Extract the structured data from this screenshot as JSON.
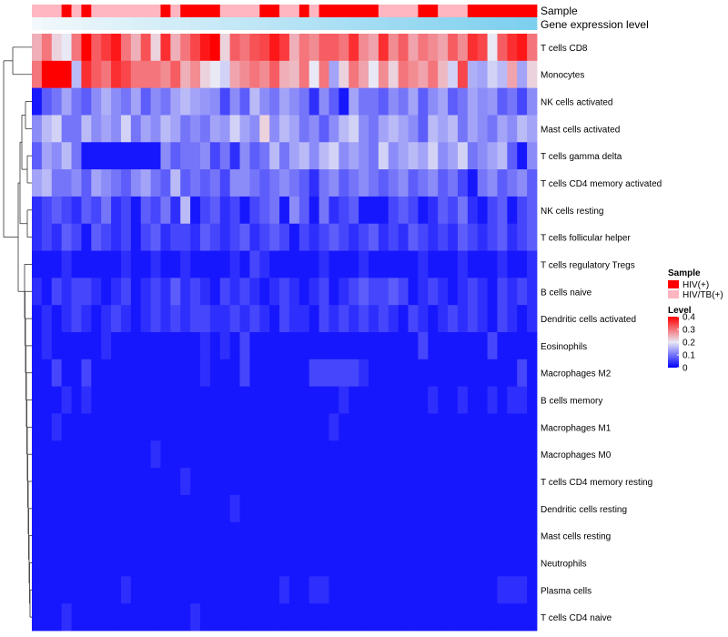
{
  "chart_data": {
    "type": "heatmap",
    "title": "",
    "annotation_tracks": [
      {
        "name": "Sample",
        "values": [
          "HIV/TB(+)",
          "HIV/TB(+)",
          "HIV/TB(+)",
          "HIV(+)",
          "HIV/TB(+)",
          "HIV(+)",
          "HIV/TB(+)",
          "HIV/TB(+)",
          "HIV/TB(+)",
          "HIV/TB(+)",
          "HIV/TB(+)",
          "HIV/TB(+)",
          "HIV/TB(+)",
          "HIV(+)",
          "HIV/TB(+)",
          "HIV(+)",
          "HIV(+)",
          "HIV(+)",
          "HIV(+)",
          "HIV/TB(+)",
          "HIV/TB(+)",
          "HIV/TB(+)",
          "HIV/TB(+)",
          "HIV(+)",
          "HIV(+)",
          "HIV/TB(+)",
          "HIV/TB(+)",
          "HIV(+)",
          "HIV/TB(+)",
          "HIV(+)",
          "HIV(+)",
          "HIV(+)",
          "HIV(+)",
          "HIV(+)",
          "HIV(+)",
          "HIV/TB(+)",
          "HIV/TB(+)",
          "HIV/TB(+)",
          "HIV/TB(+)",
          "HIV(+)",
          "HIV(+)",
          "HIV/TB(+)",
          "HIV/TB(+)",
          "HIV/TB(+)",
          "HIV(+)",
          "HIV(+)",
          "HIV(+)",
          "HIV(+)",
          "HIV(+)",
          "HIV(+)",
          "HIV(+)"
        ]
      },
      {
        "name": "Gene expression level",
        "values": [
          0.0,
          0.02,
          0.04,
          0.06,
          0.08,
          0.1,
          0.12,
          0.14,
          0.16,
          0.18,
          0.2,
          0.22,
          0.24,
          0.26,
          0.28,
          0.3,
          0.32,
          0.34,
          0.36,
          0.38,
          0.4,
          0.42,
          0.44,
          0.46,
          0.48,
          0.5,
          0.52,
          0.54,
          0.56,
          0.58,
          0.6,
          0.62,
          0.64,
          0.66,
          0.68,
          0.7,
          0.72,
          0.74,
          0.76,
          0.78,
          0.8,
          0.82,
          0.84,
          0.86,
          0.88,
          0.9,
          0.92,
          0.94,
          0.96,
          0.98,
          1.0
        ]
      }
    ],
    "rows": [
      "T cells CD8",
      "Monocytes",
      "NK cells activated",
      "Mast cells activated",
      "T cells gamma delta",
      "T cells CD4 memory activated",
      "NK cells resting",
      "T cells follicular helper",
      "T cells regulatory  Tregs",
      "B cells naive",
      "Dendritic cells activated",
      "Eosinophils",
      "Macrophages M2",
      "B cells memory",
      "Macrophages M1",
      "Macrophages M0",
      "T cells CD4 memory resting",
      "Dendritic cells resting",
      "Mast cells resting",
      "Neutrophils",
      "Plasma cells",
      "T cells CD4 naive"
    ],
    "n_columns": 51,
    "values": [
      [
        0.25,
        0.3,
        0.22,
        0.2,
        0.3,
        0.4,
        0.32,
        0.35,
        0.38,
        0.3,
        0.25,
        0.33,
        0.22,
        0.36,
        0.25,
        0.3,
        0.34,
        0.38,
        0.4,
        0.22,
        0.32,
        0.3,
        0.33,
        0.34,
        0.38,
        0.35,
        0.25,
        0.3,
        0.28,
        0.32,
        0.32,
        0.3,
        0.36,
        0.28,
        0.26,
        0.36,
        0.28,
        0.32,
        0.26,
        0.3,
        0.28,
        0.26,
        0.32,
        0.28,
        0.36,
        0.34,
        0.2,
        0.32,
        0.36,
        0.38,
        0.3
      ],
      [
        0.3,
        0.4,
        0.4,
        0.4,
        0.16,
        0.36,
        0.32,
        0.3,
        0.36,
        0.34,
        0.3,
        0.3,
        0.3,
        0.28,
        0.32,
        0.25,
        0.28,
        0.22,
        0.2,
        0.18,
        0.26,
        0.28,
        0.3,
        0.28,
        0.32,
        0.25,
        0.24,
        0.3,
        0.2,
        0.3,
        0.14,
        0.22,
        0.3,
        0.26,
        0.2,
        0.28,
        0.22,
        0.3,
        0.28,
        0.26,
        0.3,
        0.24,
        0.18,
        0.34,
        0.15,
        0.14,
        0.18,
        0.16,
        0.26,
        0.14,
        0.22
      ],
      [
        0.02,
        0.08,
        0.1,
        0.14,
        0.1,
        0.08,
        0.12,
        0.15,
        0.12,
        0.1,
        0.14,
        0.08,
        0.12,
        0.1,
        0.14,
        0.16,
        0.14,
        0.13,
        0.12,
        0.06,
        0.12,
        0.08,
        0.16,
        0.12,
        0.1,
        0.14,
        0.12,
        0.1,
        0.04,
        0.12,
        0.08,
        0.02,
        0.14,
        0.1,
        0.1,
        0.08,
        0.12,
        0.1,
        0.14,
        0.08,
        0.12,
        0.14,
        0.08,
        0.1,
        0.14,
        0.12,
        0.13,
        0.08,
        0.1,
        0.06,
        0.12
      ],
      [
        0.12,
        0.16,
        0.18,
        0.1,
        0.1,
        0.16,
        0.12,
        0.14,
        0.12,
        0.18,
        0.1,
        0.14,
        0.12,
        0.16,
        0.14,
        0.1,
        0.12,
        0.1,
        0.14,
        0.13,
        0.18,
        0.14,
        0.12,
        0.22,
        0.12,
        0.16,
        0.14,
        0.1,
        0.12,
        0.08,
        0.12,
        0.16,
        0.18,
        0.12,
        0.1,
        0.14,
        0.16,
        0.14,
        0.12,
        0.08,
        0.16,
        0.14,
        0.16,
        0.1,
        0.14,
        0.12,
        0.1,
        0.14,
        0.12,
        0.16,
        0.14
      ],
      [
        0.08,
        0.14,
        0.12,
        0.16,
        0.1,
        0.02,
        0.02,
        0.02,
        0.02,
        0.02,
        0.02,
        0.02,
        0.02,
        0.12,
        0.08,
        0.1,
        0.1,
        0.12,
        0.06,
        0.1,
        0.04,
        0.12,
        0.08,
        0.1,
        0.16,
        0.1,
        0.14,
        0.16,
        0.12,
        0.16,
        0.18,
        0.12,
        0.14,
        0.12,
        0.1,
        0.18,
        0.12,
        0.14,
        0.16,
        0.14,
        0.18,
        0.12,
        0.14,
        0.18,
        0.1,
        0.12,
        0.14,
        0.16,
        0.08,
        0.02,
        0.12
      ],
      [
        0.14,
        0.16,
        0.1,
        0.1,
        0.12,
        0.08,
        0.14,
        0.12,
        0.1,
        0.08,
        0.12,
        0.14,
        0.1,
        0.08,
        0.16,
        0.08,
        0.1,
        0.08,
        0.1,
        0.06,
        0.12,
        0.12,
        0.1,
        0.08,
        0.1,
        0.12,
        0.1,
        0.08,
        0.04,
        0.1,
        0.12,
        0.08,
        0.1,
        0.12,
        0.1,
        0.08,
        0.1,
        0.12,
        0.08,
        0.1,
        0.12,
        0.08,
        0.1,
        0.06,
        0.02,
        0.1,
        0.12,
        0.08,
        0.1,
        0.12,
        0.08
      ],
      [
        0.04,
        0.06,
        0.08,
        0.06,
        0.04,
        0.08,
        0.06,
        0.1,
        0.04,
        0.06,
        0.02,
        0.08,
        0.06,
        0.1,
        0.04,
        0.16,
        0.02,
        0.06,
        0.08,
        0.04,
        0.06,
        0.02,
        0.06,
        0.08,
        0.1,
        0.02,
        0.12,
        0.08,
        0.02,
        0.1,
        0.04,
        0.06,
        0.08,
        0.02,
        0.02,
        0.02,
        0.06,
        0.08,
        0.06,
        0.02,
        0.04,
        0.08,
        0.06,
        0.1,
        0.04,
        0.02,
        0.06,
        0.08,
        0.02,
        0.06,
        0.08
      ],
      [
        0.04,
        0.06,
        0.04,
        0.08,
        0.06,
        0.02,
        0.08,
        0.06,
        0.04,
        0.06,
        0.02,
        0.06,
        0.08,
        0.04,
        0.06,
        0.06,
        0.04,
        0.08,
        0.06,
        0.04,
        0.06,
        0.08,
        0.04,
        0.06,
        0.08,
        0.06,
        0.02,
        0.06,
        0.04,
        0.06,
        0.08,
        0.06,
        0.04,
        0.06,
        0.08,
        0.04,
        0.06,
        0.04,
        0.08,
        0.06,
        0.04,
        0.06,
        0.04,
        0.08,
        0.06,
        0.04,
        0.06,
        0.08,
        0.04,
        0.06,
        0.08
      ],
      [
        0.02,
        0.02,
        0.02,
        0.04,
        0.02,
        0.02,
        0.02,
        0.02,
        0.02,
        0.04,
        0.02,
        0.02,
        0.04,
        0.02,
        0.02,
        0.04,
        0.02,
        0.02,
        0.02,
        0.02,
        0.04,
        0.02,
        0.06,
        0.04,
        0.02,
        0.02,
        0.02,
        0.02,
        0.02,
        0.04,
        0.02,
        0.02,
        0.02,
        0.04,
        0.02,
        0.02,
        0.02,
        0.02,
        0.02,
        0.04,
        0.02,
        0.02,
        0.02,
        0.04,
        0.02,
        0.02,
        0.02,
        0.04,
        0.02,
        0.02,
        0.04
      ],
      [
        0.04,
        0.02,
        0.06,
        0.04,
        0.06,
        0.06,
        0.04,
        0.02,
        0.04,
        0.06,
        0.02,
        0.04,
        0.06,
        0.04,
        0.08,
        0.04,
        0.06,
        0.04,
        0.02,
        0.06,
        0.04,
        0.06,
        0.04,
        0.02,
        0.04,
        0.06,
        0.04,
        0.02,
        0.04,
        0.06,
        0.02,
        0.04,
        0.06,
        0.08,
        0.06,
        0.06,
        0.08,
        0.06,
        0.02,
        0.04,
        0.06,
        0.04,
        0.02,
        0.04,
        0.06,
        0.04,
        0.02,
        0.06,
        0.04,
        0.06,
        0.04
      ],
      [
        0.02,
        0.04,
        0.02,
        0.04,
        0.06,
        0.04,
        0.02,
        0.04,
        0.06,
        0.04,
        0.02,
        0.04,
        0.06,
        0.04,
        0.06,
        0.04,
        0.06,
        0.06,
        0.04,
        0.04,
        0.06,
        0.04,
        0.06,
        0.04,
        0.02,
        0.06,
        0.04,
        0.04,
        0.02,
        0.06,
        0.04,
        0.06,
        0.04,
        0.06,
        0.04,
        0.06,
        0.04,
        0.02,
        0.06,
        0.04,
        0.02,
        0.04,
        0.06,
        0.04,
        0.06,
        0.04,
        0.02,
        0.06,
        0.04,
        0.02,
        0.04
      ],
      [
        0.02,
        0.04,
        0.02,
        0.02,
        0.02,
        0.02,
        0.02,
        0.04,
        0.02,
        0.02,
        0.02,
        0.02,
        0.02,
        0.02,
        0.02,
        0.02,
        0.02,
        0.04,
        0.02,
        0.04,
        0.02,
        0.06,
        0.02,
        0.02,
        0.02,
        0.02,
        0.02,
        0.02,
        0.02,
        0.02,
        0.02,
        0.02,
        0.02,
        0.02,
        0.02,
        0.02,
        0.02,
        0.02,
        0.02,
        0.06,
        0.02,
        0.02,
        0.02,
        0.02,
        0.02,
        0.02,
        0.06,
        0.02,
        0.02,
        0.02,
        0.02
      ],
      [
        0.02,
        0.02,
        0.06,
        0.02,
        0.02,
        0.06,
        0.02,
        0.02,
        0.02,
        0.02,
        0.02,
        0.02,
        0.02,
        0.02,
        0.02,
        0.02,
        0.02,
        0.04,
        0.02,
        0.02,
        0.02,
        0.06,
        0.02,
        0.02,
        0.02,
        0.02,
        0.02,
        0.02,
        0.06,
        0.06,
        0.06,
        0.06,
        0.06,
        0.04,
        0.02,
        0.02,
        0.02,
        0.02,
        0.02,
        0.02,
        0.02,
        0.02,
        0.02,
        0.02,
        0.02,
        0.02,
        0.02,
        0.02,
        0.02,
        0.06,
        0.02
      ],
      [
        0.02,
        0.02,
        0.02,
        0.04,
        0.02,
        0.04,
        0.02,
        0.02,
        0.02,
        0.02,
        0.02,
        0.02,
        0.02,
        0.02,
        0.02,
        0.02,
        0.02,
        0.02,
        0.02,
        0.02,
        0.02,
        0.02,
        0.02,
        0.02,
        0.02,
        0.02,
        0.02,
        0.02,
        0.02,
        0.02,
        0.02,
        0.04,
        0.02,
        0.02,
        0.02,
        0.02,
        0.02,
        0.02,
        0.02,
        0.02,
        0.04,
        0.02,
        0.02,
        0.04,
        0.02,
        0.02,
        0.04,
        0.02,
        0.04,
        0.04,
        0.02
      ],
      [
        0.02,
        0.02,
        0.04,
        0.02,
        0.02,
        0.02,
        0.02,
        0.02,
        0.02,
        0.02,
        0.02,
        0.02,
        0.02,
        0.02,
        0.02,
        0.02,
        0.02,
        0.02,
        0.02,
        0.02,
        0.02,
        0.02,
        0.02,
        0.02,
        0.02,
        0.02,
        0.02,
        0.02,
        0.02,
        0.02,
        0.04,
        0.02,
        0.02,
        0.02,
        0.02,
        0.02,
        0.02,
        0.02,
        0.02,
        0.02,
        0.02,
        0.02,
        0.02,
        0.02,
        0.02,
        0.02,
        0.02,
        0.02,
        0.02,
        0.02,
        0.02
      ],
      [
        0.02,
        0.02,
        0.02,
        0.02,
        0.02,
        0.02,
        0.02,
        0.02,
        0.02,
        0.02,
        0.02,
        0.02,
        0.04,
        0.02,
        0.02,
        0.02,
        0.02,
        0.02,
        0.02,
        0.02,
        0.02,
        0.02,
        0.02,
        0.02,
        0.02,
        0.02,
        0.02,
        0.02,
        0.02,
        0.02,
        0.02,
        0.02,
        0.02,
        0.02,
        0.02,
        0.02,
        0.02,
        0.02,
        0.02,
        0.02,
        0.02,
        0.02,
        0.02,
        0.02,
        0.02,
        0.02,
        0.02,
        0.02,
        0.02,
        0.02,
        0.02
      ],
      [
        0.02,
        0.02,
        0.02,
        0.02,
        0.02,
        0.02,
        0.02,
        0.02,
        0.02,
        0.02,
        0.02,
        0.02,
        0.02,
        0.02,
        0.02,
        0.04,
        0.02,
        0.02,
        0.02,
        0.02,
        0.02,
        0.02,
        0.02,
        0.02,
        0.02,
        0.02,
        0.02,
        0.02,
        0.02,
        0.02,
        0.02,
        0.02,
        0.02,
        0.02,
        0.02,
        0.02,
        0.02,
        0.02,
        0.02,
        0.02,
        0.02,
        0.02,
        0.02,
        0.02,
        0.02,
        0.02,
        0.02,
        0.02,
        0.02,
        0.02,
        0.02
      ],
      [
        0.02,
        0.02,
        0.02,
        0.02,
        0.02,
        0.02,
        0.02,
        0.02,
        0.02,
        0.02,
        0.02,
        0.02,
        0.02,
        0.02,
        0.02,
        0.02,
        0.02,
        0.02,
        0.02,
        0.02,
        0.04,
        0.02,
        0.02,
        0.02,
        0.02,
        0.02,
        0.02,
        0.02,
        0.02,
        0.02,
        0.02,
        0.02,
        0.02,
        0.02,
        0.02,
        0.02,
        0.02,
        0.02,
        0.02,
        0.02,
        0.02,
        0.02,
        0.02,
        0.02,
        0.02,
        0.02,
        0.02,
        0.02,
        0.02,
        0.02,
        0.02
      ],
      [
        0.02,
        0.02,
        0.02,
        0.02,
        0.02,
        0.02,
        0.02,
        0.02,
        0.02,
        0.02,
        0.02,
        0.02,
        0.02,
        0.02,
        0.02,
        0.02,
        0.02,
        0.02,
        0.02,
        0.02,
        0.02,
        0.02,
        0.02,
        0.02,
        0.02,
        0.02,
        0.02,
        0.02,
        0.02,
        0.02,
        0.02,
        0.02,
        0.02,
        0.02,
        0.02,
        0.02,
        0.02,
        0.02,
        0.02,
        0.02,
        0.02,
        0.02,
        0.02,
        0.02,
        0.02,
        0.02,
        0.02,
        0.02,
        0.02,
        0.02,
        0.02
      ],
      [
        0.02,
        0.02,
        0.02,
        0.02,
        0.02,
        0.02,
        0.02,
        0.02,
        0.02,
        0.02,
        0.02,
        0.02,
        0.02,
        0.02,
        0.02,
        0.02,
        0.02,
        0.02,
        0.02,
        0.02,
        0.02,
        0.02,
        0.02,
        0.02,
        0.02,
        0.02,
        0.02,
        0.02,
        0.02,
        0.02,
        0.02,
        0.02,
        0.02,
        0.02,
        0.02,
        0.02,
        0.02,
        0.02,
        0.02,
        0.02,
        0.02,
        0.02,
        0.02,
        0.02,
        0.02,
        0.02,
        0.02,
        0.02,
        0.02,
        0.02,
        0.02
      ],
      [
        0.02,
        0.02,
        0.02,
        0.02,
        0.02,
        0.02,
        0.02,
        0.02,
        0.02,
        0.04,
        0.02,
        0.02,
        0.02,
        0.02,
        0.02,
        0.02,
        0.02,
        0.02,
        0.02,
        0.02,
        0.02,
        0.02,
        0.02,
        0.02,
        0.02,
        0.04,
        0.02,
        0.02,
        0.04,
        0.04,
        0.02,
        0.02,
        0.02,
        0.02,
        0.02,
        0.02,
        0.02,
        0.02,
        0.02,
        0.02,
        0.02,
        0.02,
        0.02,
        0.02,
        0.02,
        0.02,
        0.02,
        0.04,
        0.04,
        0.04,
        0.02
      ],
      [
        0.02,
        0.02,
        0.02,
        0.04,
        0.02,
        0.02,
        0.02,
        0.02,
        0.02,
        0.02,
        0.02,
        0.02,
        0.02,
        0.02,
        0.02,
        0.02,
        0.04,
        0.02,
        0.02,
        0.02,
        0.02,
        0.02,
        0.02,
        0.02,
        0.02,
        0.02,
        0.02,
        0.02,
        0.02,
        0.02,
        0.02,
        0.02,
        0.02,
        0.02,
        0.02,
        0.02,
        0.02,
        0.02,
        0.02,
        0.02,
        0.02,
        0.02,
        0.02,
        0.02,
        0.02,
        0.02,
        0.02,
        0.02,
        0.02,
        0.02,
        0.02
      ]
    ],
    "color_scale": {
      "low": "#0000ff",
      "mid": "#e9e9f5",
      "high": "#ff0000",
      "range": [
        0,
        0.4
      ]
    },
    "legend": {
      "sample": {
        "title": "Sample",
        "entries": [
          {
            "label": "HIV(+)",
            "color": "#ff0000"
          },
          {
            "label": "HIV/TB(+)",
            "color": "#ffb6c1"
          }
        ]
      },
      "level": {
        "title": "Level",
        "ticks": [
          0.4,
          0.3,
          0.2,
          0.1,
          0
        ],
        "tick_labels": [
          "0.4",
          "0.3",
          "0.2",
          "0.1",
          "0"
        ]
      },
      "placement": "right"
    },
    "dendrogram": "rows-left"
  },
  "colors": {
    "annotation_low": "#f2f8fb",
    "annotation_high": "#7ccfef",
    "tree_line": "#333333"
  }
}
